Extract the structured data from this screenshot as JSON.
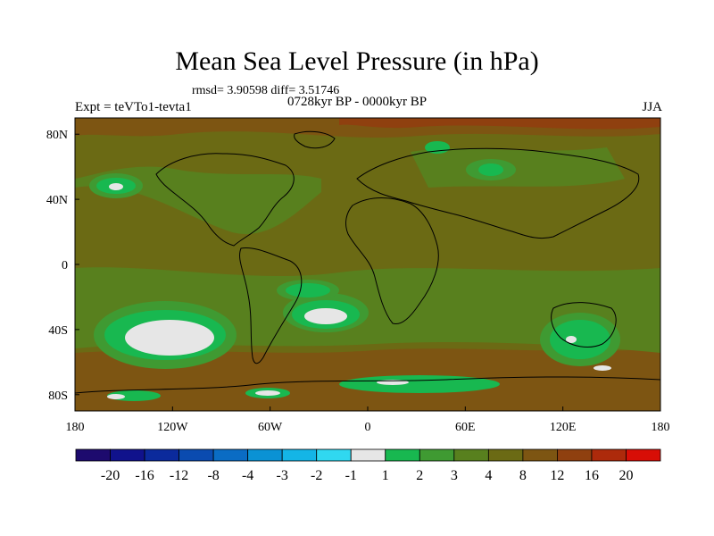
{
  "chart_data": {
    "type": "heatmap",
    "title": "Mean Sea Level Pressure (in hPa)",
    "stats_text": "rmsd= 3.90598 diff= 3.51746",
    "period": "0728kyr BP - 0000kyr BP",
    "expt": "Expt = teVTo1-tevta1",
    "season": "JJA",
    "x_ticks": [
      "180",
      "120W",
      "60W",
      "0",
      "60E",
      "120E",
      "180"
    ],
    "y_ticks": [
      "80N",
      "40N",
      "0",
      "40S",
      "80S"
    ],
    "xlim": [
      -180,
      180
    ],
    "ylim": [
      -90,
      90
    ],
    "colorbar": {
      "levels": [
        "-20",
        "-16",
        "-12",
        "-8",
        "-4",
        "-3",
        "-2",
        "-1",
        "1",
        "2",
        "3",
        "4",
        "8",
        "12",
        "16",
        "20"
      ],
      "colors": [
        "#1d0a6e",
        "#10128c",
        "#0b2a9c",
        "#0a4bb0",
        "#0a6cc4",
        "#0a92d4",
        "#14b5e6",
        "#30d8f0",
        "#e6e6e6",
        "#18b850",
        "#3f9a32",
        "#58801e",
        "#6b6a14",
        "#7d5512",
        "#8f400f",
        "#ad2a0b",
        "#d80e06"
      ]
    }
  }
}
